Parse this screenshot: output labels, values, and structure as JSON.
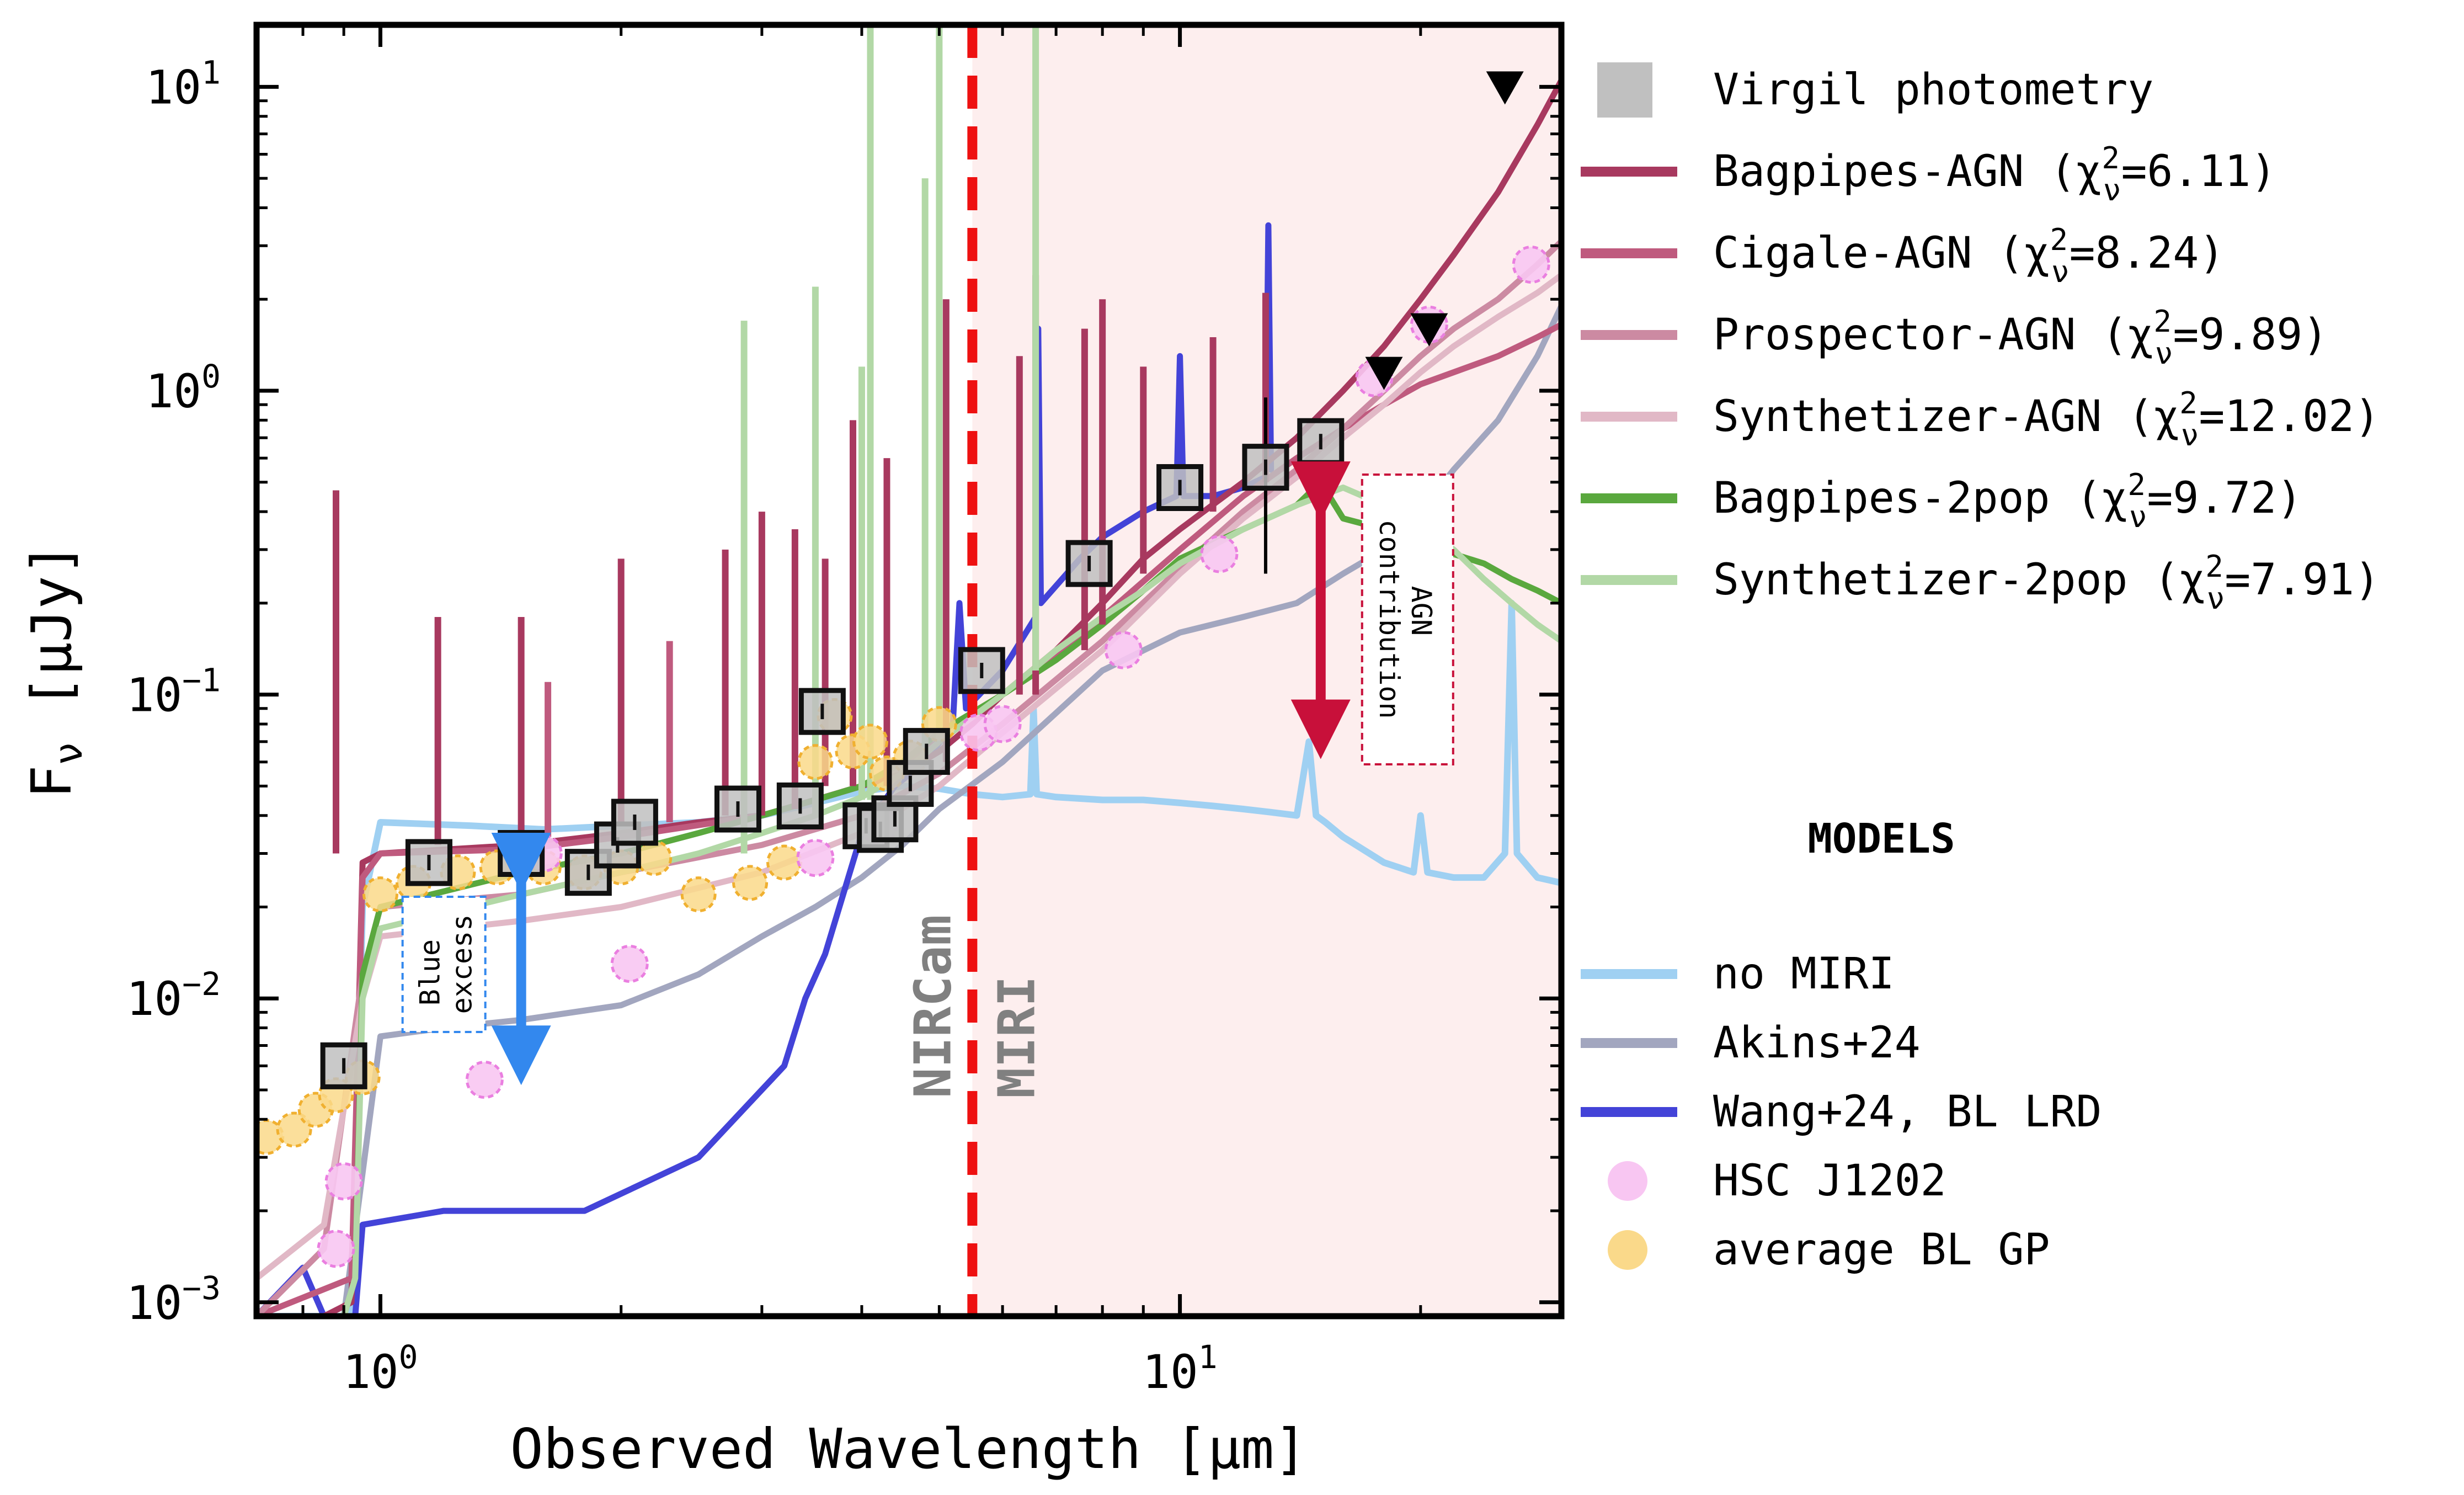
{
  "chart_data": {
    "type": "line",
    "xlabel": "Observed Wavelength [µm]",
    "ylabel": "F",
    "ylabel_sub": "ν",
    "ylabel_unit": " [µJy]",
    "xscale": "log",
    "yscale": "log",
    "xlim": [
      0.7,
      30
    ],
    "ylim": [
      0.0009,
      16
    ],
    "xtick_labels": [
      {
        "value": 1,
        "base": "10",
        "exp": "0"
      },
      {
        "value": 10,
        "base": "10",
        "exp": "1"
      }
    ],
    "ytick_labels": [
      {
        "value": 0.001,
        "base": "10",
        "exp": "−3"
      },
      {
        "value": 0.01,
        "base": "10",
        "exp": "−2"
      },
      {
        "value": 0.1,
        "base": "10",
        "exp": "−1"
      },
      {
        "value": 1,
        "base": "10",
        "exp": "0"
      },
      {
        "value": 10,
        "base": "10",
        "exp": "1"
      }
    ],
    "boundary": {
      "x": 5.5,
      "left_label": "NIRCam",
      "right_label": "MIRI",
      "color": "#ee1111"
    },
    "miri_shade_color": "#fdeeee",
    "legend_fit": [
      {
        "label": "Virgil photometry",
        "kind": "square",
        "color": "#c0c0c0"
      },
      {
        "label": "Bagpipes-AGN (χ",
        "chi": "6.11",
        "kind": "line",
        "color": "#a8395f"
      },
      {
        "label": "Cigale-AGN (χ",
        "chi": "8.24",
        "kind": "line",
        "color": "#bf5a7e"
      },
      {
        "label": "Prospector-AGN (χ",
        "chi": "9.89",
        "kind": "line",
        "color": "#cc8aa2"
      },
      {
        "label": "Synthetizer-AGN (χ",
        "chi": "12.02",
        "kind": "line",
        "color": "#e1b8c6"
      },
      {
        "label": "Bagpipes-2pop (χ",
        "chi": "9.72",
        "kind": "line",
        "color": "#5aa83e"
      },
      {
        "label": "Synthetizer-2pop (χ",
        "chi": "7.91",
        "kind": "line",
        "color": "#b2d8a6"
      }
    ],
    "chi_parts": {
      "sup": "2",
      "sub": "ν"
    },
    "models_title": "MODELS",
    "legend_models": [
      {
        "label": "no MIRI",
        "kind": "line",
        "color": "#9fd0f2"
      },
      {
        "label": "Akins+24",
        "kind": "line",
        "color": "#a2a6bf"
      },
      {
        "label": "Wang+24, BL LRD",
        "kind": "line",
        "color": "#4343d8"
      },
      {
        "label": "HSC J1202",
        "kind": "circle",
        "color": "#f8c6f2"
      },
      {
        "label": "average BL GP",
        "kind": "circle",
        "color": "#fad98a"
      }
    ],
    "annotations": {
      "blue_excess": {
        "lines": [
          "Blue",
          "excess"
        ],
        "color": "#3388ee",
        "x": 1.5,
        "y_top": 0.028,
        "y_bottom": 0.0065
      },
      "agn_contribution": {
        "lines": [
          "AGN",
          "contribution"
        ],
        "color": "#c8103a",
        "x": 15,
        "y_top": 0.6,
        "y_bottom": 0.065
      }
    },
    "photometry": {
      "x": [
        0.9,
        1.15,
        1.5,
        1.82,
        1.98,
        2.08,
        2.8,
        3.35,
        3.57,
        4.05,
        4.22,
        4.4,
        4.6,
        4.82,
        5.65,
        7.7,
        10.0,
        12.8,
        15.0
      ],
      "y": [
        0.006,
        0.028,
        0.03,
        0.026,
        0.032,
        0.038,
        0.042,
        0.043,
        0.088,
        0.037,
        0.036,
        0.039,
        0.051,
        0.065,
        0.12,
        0.27,
        0.48,
        0.56,
        0.68
      ],
      "err_x": [
        12.8
      ],
      "err_lo": [
        0.25
      ],
      "err_hi": [
        0.95
      ]
    },
    "upper_limits": {
      "x": [
        18,
        20.5,
        25.5
      ],
      "y": [
        1.15,
        1.6,
        10.0
      ]
    },
    "hsc_j1202": {
      "x": [
        0.88,
        0.9,
        1.35,
        1.6,
        2.05,
        3.5,
        4.2,
        5.6,
        6.0,
        8.5,
        11.2,
        17.5,
        20.5,
        27.5
      ],
      "y": [
        0.0015,
        0.0025,
        0.0054,
        0.03,
        0.013,
        0.029,
        0.037,
        0.075,
        0.08,
        0.14,
        0.29,
        1.1,
        1.65,
        2.6
      ]
    },
    "avg_bl_gp": {
      "x": [
        0.72,
        0.78,
        0.83,
        0.88,
        0.95,
        1.0,
        1.1,
        1.25,
        1.4,
        1.6,
        1.8,
        2.0,
        2.2,
        2.5,
        2.9,
        3.2,
        3.5,
        3.7,
        3.9,
        4.1,
        4.3,
        4.6,
        5.0
      ],
      "y": [
        0.0035,
        0.0037,
        0.0043,
        0.0048,
        0.0055,
        0.022,
        0.024,
        0.026,
        0.027,
        0.027,
        0.026,
        0.027,
        0.029,
        0.022,
        0.024,
        0.028,
        0.06,
        0.085,
        0.065,
        0.07,
        0.055,
        0.062,
        0.08
      ]
    },
    "series": [
      {
        "name": "no MIRI",
        "color": "#9fd0f2",
        "width": 12,
        "x": [
          0.7,
          0.85,
          0.92,
          0.95,
          1.0,
          1.3,
          1.6,
          2.0,
          2.5,
          3.0,
          3.5,
          4.0,
          4.5,
          5.0,
          5.5,
          6.0,
          6.5,
          6.56,
          6.62,
          7.0,
          8.0,
          9.0,
          10.0,
          11.0,
          12.0,
          13.0,
          14.0,
          14.5,
          14.8,
          15.2,
          16.0,
          18.0,
          19.6,
          20.0,
          20.4,
          22.0,
          24.0,
          25.5,
          26.0,
          26.4,
          28.0,
          30.0
        ],
        "y": [
          0.0009,
          0.0009,
          0.0009,
          0.02,
          0.038,
          0.037,
          0.036,
          0.037,
          0.038,
          0.04,
          0.044,
          0.048,
          0.05,
          0.049,
          0.047,
          0.046,
          0.047,
          0.09,
          0.047,
          0.046,
          0.045,
          0.045,
          0.044,
          0.043,
          0.042,
          0.041,
          0.04,
          0.07,
          0.04,
          0.038,
          0.034,
          0.028,
          0.026,
          0.04,
          0.026,
          0.025,
          0.025,
          0.03,
          0.2,
          0.03,
          0.025,
          0.024
        ]
      },
      {
        "name": "Akins+24",
        "color": "#a2a6bf",
        "width": 11,
        "x": [
          0.9,
          1.0,
          1.2,
          1.5,
          2.0,
          2.5,
          3.0,
          3.5,
          4.0,
          4.5,
          5.0,
          6.0,
          8.0,
          10.0,
          12.0,
          14.0,
          16.0,
          18.0,
          20.0,
          22.0,
          25.0,
          28.0,
          30.0
        ],
        "y": [
          0.0009,
          0.0075,
          0.008,
          0.0085,
          0.0095,
          0.012,
          0.016,
          0.02,
          0.025,
          0.032,
          0.042,
          0.06,
          0.12,
          0.16,
          0.18,
          0.2,
          0.25,
          0.3,
          0.4,
          0.55,
          0.8,
          1.3,
          1.9
        ]
      },
      {
        "name": "Wang+24, BL LRD",
        "color": "#4343d8",
        "width": 11,
        "x": [
          0.7,
          0.8,
          0.85,
          0.93,
          0.95,
          1.2,
          1.8,
          2.5,
          3.2,
          3.4,
          3.6,
          4.0,
          4.4,
          4.8,
          5.2,
          5.3,
          5.4,
          6.0,
          6.6,
          6.65,
          6.7,
          7.5,
          8.0,
          9.0,
          9.9,
          10.0,
          10.1,
          11.0,
          12.0,
          12.8,
          12.9,
          13.0
        ],
        "y": [
          0.0009,
          0.0013,
          0.0009,
          0.0009,
          0.0018,
          0.002,
          0.002,
          0.003,
          0.006,
          0.01,
          0.014,
          0.035,
          0.05,
          0.06,
          0.08,
          0.2,
          0.09,
          0.12,
          0.18,
          1.6,
          0.2,
          0.28,
          0.33,
          0.4,
          0.45,
          1.3,
          0.45,
          0.45,
          0.48,
          0.52,
          3.5,
          0.55
        ]
      },
      {
        "name": "Bagpipes-AGN",
        "color": "#a8395f",
        "width": 11,
        "x": [
          0.7,
          0.85,
          0.92,
          0.95,
          1.0,
          1.5,
          2.0,
          2.5,
          3.0,
          3.5,
          4.0,
          4.5,
          5.0,
          5.5,
          6.0,
          7.0,
          8.0,
          9.0,
          10.0,
          12.0,
          14.0,
          16.0,
          18.0,
          20.0,
          22.0,
          25.0,
          28.0,
          30.0
        ],
        "y": [
          0.0009,
          0.0009,
          0.001,
          0.028,
          0.03,
          0.032,
          0.035,
          0.038,
          0.04,
          0.045,
          0.05,
          0.055,
          0.065,
          0.08,
          0.1,
          0.14,
          0.2,
          0.28,
          0.35,
          0.5,
          0.7,
          1.0,
          1.4,
          2.0,
          2.8,
          4.5,
          7.5,
          10.5
        ]
      },
      {
        "name": "Cigale-AGN",
        "color": "#bf5a7e",
        "width": 11,
        "x": [
          0.7,
          0.92,
          0.95,
          1.0,
          1.5,
          2.0,
          3.0,
          4.0,
          5.0,
          6.0,
          8.0,
          10.0,
          12.0,
          14.0,
          16.0,
          18.0,
          20.0,
          22.0,
          25.0,
          28.0,
          30.0
        ],
        "y": [
          0.0009,
          0.0012,
          0.025,
          0.03,
          0.031,
          0.034,
          0.04,
          0.05,
          0.07,
          0.1,
          0.18,
          0.3,
          0.45,
          0.6,
          0.75,
          0.9,
          1.05,
          1.15,
          1.3,
          1.5,
          1.65
        ]
      },
      {
        "name": "Prospector-AGN",
        "color": "#cc8aa2",
        "width": 11,
        "x": [
          0.7,
          0.85,
          0.95,
          1.0,
          1.5,
          2.0,
          3.0,
          4.0,
          5.0,
          6.0,
          8.0,
          10.0,
          12.0,
          14.0,
          16.0,
          18.0,
          20.0,
          22.0,
          25.0,
          28.0,
          30.0
        ],
        "y": [
          0.0009,
          0.0015,
          0.012,
          0.02,
          0.022,
          0.026,
          0.032,
          0.04,
          0.055,
          0.08,
          0.15,
          0.26,
          0.4,
          0.55,
          0.75,
          1.0,
          1.3,
          1.6,
          2.0,
          2.6,
          3.1
        ]
      },
      {
        "name": "Synthetizer-AGN",
        "color": "#e1b8c6",
        "width": 11,
        "x": [
          0.7,
          0.85,
          0.95,
          1.0,
          1.5,
          2.0,
          3.0,
          4.0,
          5.0,
          6.0,
          8.0,
          10.0,
          12.0,
          14.0,
          16.0,
          18.0,
          20.0,
          22.0,
          25.0,
          28.0,
          30.0
        ],
        "y": [
          0.0012,
          0.0018,
          0.01,
          0.016,
          0.018,
          0.02,
          0.026,
          0.035,
          0.05,
          0.075,
          0.14,
          0.25,
          0.38,
          0.52,
          0.7,
          0.9,
          1.15,
          1.4,
          1.75,
          2.1,
          2.4
        ]
      },
      {
        "name": "Bagpipes-2pop",
        "color": "#5aa83e",
        "width": 11,
        "x": [
          0.7,
          0.9,
          0.93,
          0.95,
          1.0,
          1.5,
          2.0,
          2.5,
          3.0,
          3.5,
          4.0,
          4.5,
          5.0,
          6.0,
          7.0,
          8.0,
          9.0,
          10.0,
          12.0,
          14.0,
          15.0,
          16.0,
          18.0,
          20.0,
          22.0,
          24.0,
          26.0,
          28.0,
          30.0
        ],
        "y": [
          0.0009,
          0.0009,
          0.0012,
          0.012,
          0.02,
          0.026,
          0.03,
          0.035,
          0.04,
          0.045,
          0.05,
          0.06,
          0.075,
          0.1,
          0.13,
          0.17,
          0.22,
          0.28,
          0.35,
          0.42,
          0.5,
          0.38,
          0.35,
          0.3,
          0.29,
          0.27,
          0.24,
          0.22,
          0.2
        ]
      },
      {
        "name": "Synthetizer-2pop",
        "color": "#b2d8a6",
        "width": 11,
        "x": [
          0.7,
          0.9,
          0.93,
          0.95,
          1.0,
          1.5,
          2.0,
          2.5,
          3.0,
          3.5,
          4.0,
          4.5,
          5.0,
          6.0,
          7.0,
          8.0,
          9.0,
          10.0,
          12.0,
          14.0,
          16.0,
          18.0,
          20.0,
          22.0,
          24.0,
          26.0,
          28.0,
          30.0
        ],
        "y": [
          0.0009,
          0.0009,
          0.0012,
          0.01,
          0.017,
          0.022,
          0.026,
          0.03,
          0.035,
          0.04,
          0.046,
          0.055,
          0.07,
          0.1,
          0.14,
          0.18,
          0.22,
          0.27,
          0.35,
          0.42,
          0.48,
          0.42,
          0.36,
          0.3,
          0.24,
          0.2,
          0.17,
          0.15
        ]
      }
    ],
    "emission_lines": [
      {
        "x": 0.88,
        "y0": 0.03,
        "y1": 0.47,
        "color": "#a8395f"
      },
      {
        "x": 1.18,
        "y0": 0.032,
        "y1": 0.18,
        "color": "#a8395f"
      },
      {
        "x": 1.5,
        "y0": 0.034,
        "y1": 0.18,
        "color": "#a8395f"
      },
      {
        "x": 1.62,
        "y0": 0.034,
        "y1": 0.11,
        "color": "#bf5a7e"
      },
      {
        "x": 2.0,
        "y0": 0.038,
        "y1": 0.28,
        "color": "#a8395f"
      },
      {
        "x": 2.3,
        "y0": 0.038,
        "y1": 0.15,
        "color": "#bf5a7e"
      },
      {
        "x": 2.7,
        "y0": 0.04,
        "y1": 0.3,
        "color": "#a8395f"
      },
      {
        "x": 3.0,
        "y0": 0.04,
        "y1": 0.4,
        "color": "#a8395f"
      },
      {
        "x": 3.3,
        "y0": 0.042,
        "y1": 0.35,
        "color": "#a8395f"
      },
      {
        "x": 3.6,
        "y0": 0.05,
        "y1": 0.28,
        "color": "#a8395f"
      },
      {
        "x": 3.9,
        "y0": 0.05,
        "y1": 0.8,
        "color": "#a8395f"
      },
      {
        "x": 4.3,
        "y0": 0.05,
        "y1": 0.6,
        "color": "#a8395f"
      },
      {
        "x": 5.1,
        "y0": 0.06,
        "y1": 2.0,
        "color": "#a8395f"
      },
      {
        "x": 6.3,
        "y0": 0.1,
        "y1": 1.3,
        "color": "#a8395f"
      },
      {
        "x": 6.6,
        "y0": 0.1,
        "y1": 2.4,
        "color": "#a8395f"
      },
      {
        "x": 7.6,
        "y0": 0.14,
        "y1": 1.6,
        "color": "#a8395f"
      },
      {
        "x": 8.0,
        "y0": 0.17,
        "y1": 2.0,
        "color": "#a8395f"
      },
      {
        "x": 9.0,
        "y0": 0.25,
        "y1": 1.2,
        "color": "#a8395f"
      },
      {
        "x": 11.0,
        "y0": 0.4,
        "y1": 1.5,
        "color": "#a8395f"
      },
      {
        "x": 12.8,
        "y0": 0.5,
        "y1": 2.1,
        "color": "#a8395f"
      },
      {
        "x": 2.85,
        "y0": 0.03,
        "y1": 1.7,
        "color": "#b2d8a6"
      },
      {
        "x": 3.5,
        "y0": 0.04,
        "y1": 2.2,
        "color": "#b2d8a6"
      },
      {
        "x": 4.0,
        "y0": 0.045,
        "y1": 1.2,
        "color": "#b2d8a6"
      },
      {
        "x": 4.1,
        "y0": 0.045,
        "y1": 16,
        "color": "#b2d8a6"
      },
      {
        "x": 4.8,
        "y0": 0.06,
        "y1": 5.0,
        "color": "#b2d8a6"
      },
      {
        "x": 5.0,
        "y0": 0.07,
        "y1": 16,
        "color": "#b2d8a6"
      },
      {
        "x": 6.6,
        "y0": 0.12,
        "y1": 16,
        "color": "#b2d8a6"
      }
    ]
  }
}
